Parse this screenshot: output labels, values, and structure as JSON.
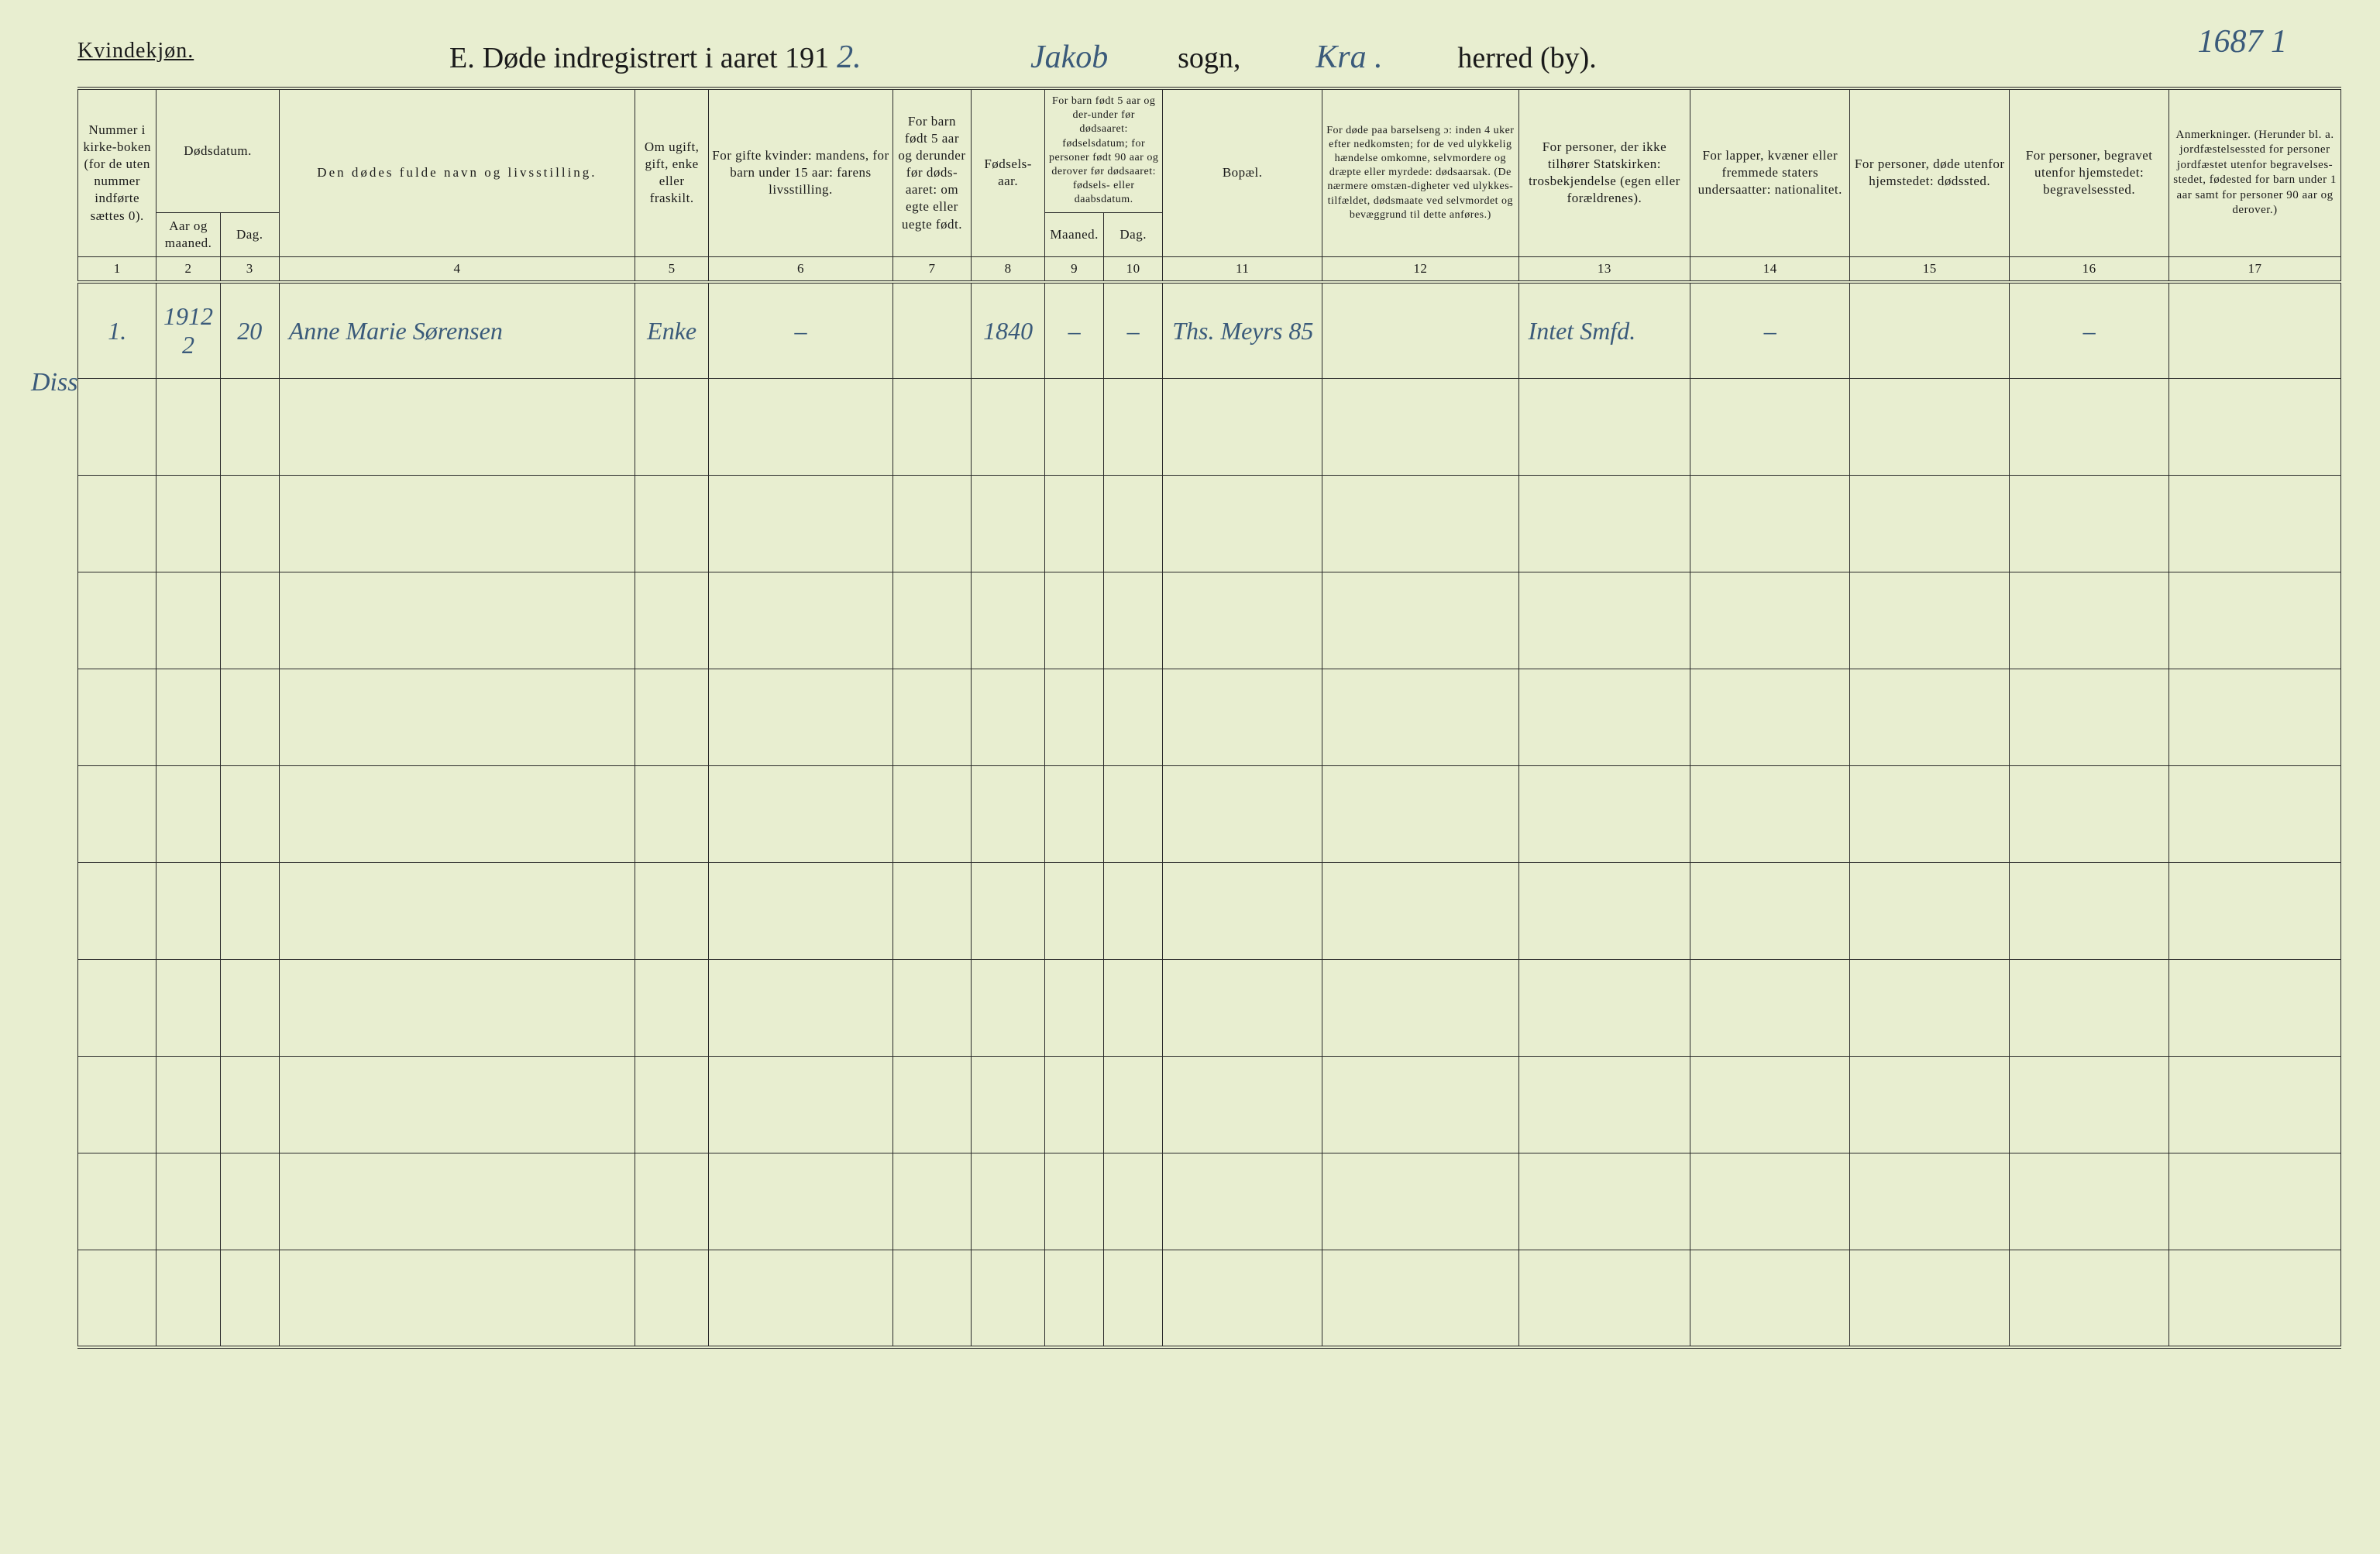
{
  "page_number_hw": "1687 1",
  "gender_label": "Kvindekjøn.",
  "title": {
    "section_letter": "E.",
    "prefix": "Døde indregistrert i aaret 191",
    "year_hw": "2.",
    "sogn_hw": "Jakob",
    "sogn_label": "sogn,",
    "herred_hw": "Kra .",
    "herred_label": "herred (by)."
  },
  "margin_note": "Diss",
  "columns": {
    "c1": "Nummer i kirke-boken (for de uten nummer indførte sættes 0).",
    "c2_group": "Dødsdatum.",
    "c2": "Aar og maaned.",
    "c3": "Dag.",
    "c4": "Den dødes fulde navn og livsstilling.",
    "c5": "Om ugift, gift, enke eller fraskilt.",
    "c6": "For gifte kvinder: mandens, for barn under 15 aar: farens livsstilling.",
    "c7": "For barn født 5 aar og derunder før døds-aaret: om egte eller uegte født.",
    "c8": "Fødsels-aar.",
    "c9_group": "For barn født 5 aar og der-under før dødsaaret: fødselsdatum; for personer født 90 aar og derover før dødsaaret: fødsels- eller daabsdatum.",
    "c9": "Maaned.",
    "c10": "Dag.",
    "c11": "Bopæl.",
    "c12": "For døde paa barselseng ɔ: inden 4 uker efter nedkomsten; for de ved ulykkelig hændelse omkomne, selvmordere og dræpte eller myrdede: dødsaarsak. (De nærmere omstæn-digheter ved ulykkes-tilfældet, dødsmaate ved selvmordet og bevæggrund til dette anføres.)",
    "c13": "For personer, der ikke tilhører Statskirken: trosbekjendelse (egen eller forældrenes).",
    "c14": "For lapper, kvæner eller fremmede staters undersaatter: nationalitet.",
    "c15": "For personer, døde utenfor hjemstedet: dødssted.",
    "c16": "For personer, begravet utenfor hjemstedet: begravelsessted.",
    "c17": "Anmerkninger. (Herunder bl. a. jordfæstelsessted for personer jordfæstet utenfor begravelses-stedet, fødested for barn under 1 aar samt for personer 90 aar og derover.)"
  },
  "col_numbers": [
    "1",
    "2",
    "3",
    "4",
    "5",
    "6",
    "7",
    "8",
    "9",
    "10",
    "11",
    "12",
    "13",
    "14",
    "15",
    "16",
    "17"
  ],
  "rows": [
    {
      "num": "1.",
      "aar": "1912 2",
      "dag": "20",
      "navn": "Anne Marie Sørensen",
      "stand": "Enke",
      "c6": "–",
      "c7": "",
      "faar": "1840",
      "c9": "–",
      "c10": "–",
      "bopael": "Ths. Meyrs 85",
      "c12": "",
      "c13": "Intet Smfd.",
      "c14": "–",
      "c15": "",
      "c16": "–",
      "c17": ""
    },
    {},
    {},
    {},
    {},
    {},
    {},
    {},
    {},
    {},
    {}
  ],
  "colors": {
    "paper": "#e8eed0",
    "ink": "#1a1a1a",
    "handwriting": "#3a5a7a",
    "rule": "#2a2a2a"
  },
  "fontsizes": {
    "title": 38,
    "gender": 28,
    "header_cell": 17,
    "handwriting": 42
  }
}
